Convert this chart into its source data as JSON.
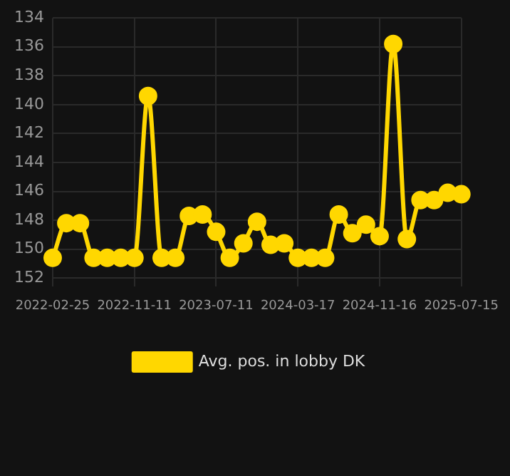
{
  "chart_data": {
    "type": "line",
    "categories": [
      "2022-02-25",
      null,
      null,
      null,
      null,
      null,
      "2022-11-11",
      null,
      null,
      null,
      null,
      null,
      "2023-07-11",
      null,
      null,
      null,
      null,
      null,
      "2024-03-17",
      null,
      null,
      null,
      null,
      null,
      "2024-11-16",
      null,
      null,
      null,
      null,
      null,
      "2025-07-15"
    ],
    "series": [
      {
        "name": "Avg. pos. in lobby DK",
        "color": "#ffd700",
        "values": [
          150.6,
          148.2,
          148.2,
          150.6,
          150.6,
          150.6,
          150.6,
          139.4,
          150.6,
          150.6,
          147.7,
          147.6,
          148.8,
          150.6,
          149.6,
          148.1,
          149.7,
          149.6,
          150.6,
          150.6,
          150.6,
          147.6,
          148.9,
          148.3,
          149.1,
          135.8,
          149.3,
          146.6,
          146.6,
          146.1,
          146.2
        ]
      }
    ],
    "ylim": [
      152.6,
      134
    ],
    "yticks": [
      134,
      136,
      138,
      140,
      142,
      144,
      146,
      148,
      150,
      152
    ],
    "grid": true,
    "legend": "bottom",
    "marker": "circle",
    "line_style": "solid"
  }
}
